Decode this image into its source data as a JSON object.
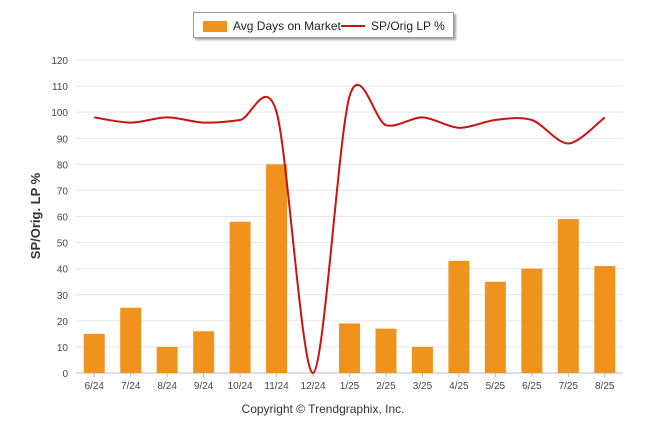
{
  "chart_data": {
    "type": "bar",
    "categories": [
      "6/24",
      "7/24",
      "8/24",
      "9/24",
      "10/24",
      "11/24",
      "12/24",
      "1/25",
      "2/25",
      "3/25",
      "4/25",
      "5/25",
      "6/25",
      "7/25",
      "8/25"
    ],
    "series": [
      {
        "name": "Avg Days on Market",
        "type": "bar",
        "color": "#f0931e",
        "values": [
          15,
          25,
          10,
          16,
          58,
          80,
          0,
          19,
          17,
          10,
          43,
          35,
          40,
          59,
          41
        ]
      },
      {
        "name": "SP/Orig LP %",
        "type": "line",
        "color": "#cc1111",
        "values": [
          98,
          96,
          98,
          96,
          97,
          100,
          0,
          106,
          95,
          98,
          94,
          97,
          97,
          88,
          98
        ]
      }
    ],
    "ylabel": "SP/Orig. LP %",
    "ylim": [
      0,
      120
    ],
    "yticks": [
      0,
      10,
      20,
      30,
      40,
      50,
      60,
      70,
      80,
      90,
      100,
      110,
      120
    ],
    "grid": true,
    "legend_position": "top-center"
  },
  "legend": {
    "bar_label": "Avg Days on Market",
    "line_label": "SP/Orig LP %"
  },
  "footer": "Copyright © Trendgraphix, Inc."
}
